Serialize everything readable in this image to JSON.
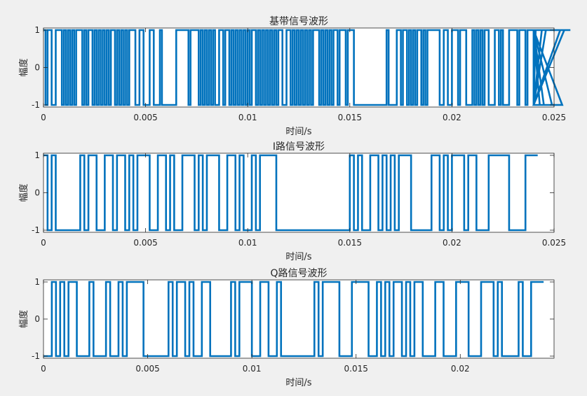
{
  "figure": {
    "background": "#f0f0f0",
    "axes_background": "#ffffff",
    "line_color": "#0072bd"
  },
  "chart_data": [
    {
      "type": "line",
      "title": "基带信号波形",
      "xlabel": "时间/s",
      "ylabel": "幅度",
      "xlim": [
        0,
        0.025
      ],
      "ylim": [
        -1,
        1
      ],
      "xticks": [
        "0",
        "0.005",
        "0.01",
        "0.015",
        "0.02",
        "0.025"
      ],
      "yticks": [
        "-1",
        "0",
        "1"
      ],
      "grid": false,
      "series": [
        {
          "style": "step",
          "bit_duration": 0.0001,
          "x_start": 0,
          "x_end": 0.024,
          "levels": [
            1,
            -1,
            1,
            1,
            -1,
            -1,
            1,
            1,
            1,
            -1,
            1,
            -1,
            1,
            -1,
            1,
            -1,
            1,
            1,
            1,
            -1,
            1,
            -1,
            1,
            1,
            -1,
            1,
            -1,
            1,
            -1,
            1,
            -1,
            1,
            -1,
            1,
            1,
            -1,
            1,
            -1,
            1,
            -1,
            1,
            -1,
            1,
            1,
            1,
            -1,
            -1,
            1,
            1,
            -1,
            -1,
            -1,
            1,
            1,
            -1,
            -1,
            -1,
            1,
            -1,
            -1,
            -1,
            -1,
            -1,
            -1,
            -1,
            1,
            1,
            1,
            1,
            1,
            1,
            -1,
            1,
            1,
            1,
            1,
            -1,
            1,
            -1,
            1,
            -1,
            1,
            -1,
            1,
            -1,
            -1,
            1,
            1,
            -1,
            1,
            1,
            -1,
            1,
            -1,
            1,
            -1,
            1,
            -1,
            1,
            -1,
            1,
            -1,
            1,
            1,
            -1,
            1,
            -1,
            1,
            -1,
            1,
            -1,
            1,
            -1,
            1,
            -1,
            1,
            1,
            -1,
            -1,
            1,
            1,
            -1,
            1,
            -1,
            1,
            -1,
            1,
            -1,
            1,
            -1,
            1,
            -1,
            1,
            1,
            1,
            -1,
            1,
            -1,
            1,
            -1,
            1,
            -1,
            1,
            1,
            -1,
            1,
            1,
            1,
            -1,
            1,
            1,
            1,
            -1,
            -1,
            -1,
            -1,
            -1,
            -1,
            -1,
            -1,
            -1,
            -1,
            -1,
            -1,
            -1,
            -1,
            -1,
            -1,
            1,
            -1,
            -1,
            -1,
            -1,
            1,
            1,
            -1,
            1,
            1,
            -1,
            1,
            -1,
            1,
            -1,
            1,
            1,
            -1,
            1,
            -1,
            1,
            1,
            1,
            1,
            1,
            1,
            -1,
            -1,
            1,
            1,
            -1,
            -1,
            1,
            1,
            1,
            -1,
            1,
            1,
            1,
            -1,
            -1,
            -1,
            1,
            -1,
            1,
            -1,
            1,
            -1,
            1,
            1,
            -1,
            -1,
            -1,
            1,
            1,
            -1,
            1,
            -1,
            -1,
            -1,
            1,
            1,
            1,
            1,
            -1,
            1,
            1,
            1,
            -1,
            1,
            1,
            1,
            -1,
            1,
            1,
            -1,
            1,
            -1,
            1,
            1,
            1,
            -1,
            -1,
            -1,
            -1,
            1,
            -1,
            1,
            1,
            1,
            1
          ]
        }
      ]
    },
    {
      "type": "line",
      "title": "I路信号波形",
      "xlabel": "时间/s",
      "ylabel": "幅度",
      "xlim": [
        0,
        0.025
      ],
      "ylim": [
        -1,
        1
      ],
      "xticks": [
        "0",
        "0.005",
        "0.01",
        "0.015",
        "0.02",
        "0.025"
      ],
      "yticks": [
        "-1",
        "0",
        "1"
      ],
      "grid": false,
      "series": [
        {
          "style": "step",
          "bit_duration": 0.0002,
          "x_start": 0,
          "x_end": 0.024,
          "levels": [
            1,
            -1,
            1,
            -1,
            -1,
            -1,
            -1,
            -1,
            -1,
            1,
            -1,
            1,
            1,
            -1,
            -1,
            1,
            1,
            -1,
            1,
            1,
            -1,
            1,
            -1,
            1,
            1,
            1,
            -1,
            -1,
            1,
            1,
            -1,
            1,
            -1,
            -1,
            1,
            1,
            1,
            -1,
            1,
            -1,
            1,
            1,
            1,
            -1,
            -1,
            1,
            1,
            -1,
            1,
            -1,
            -1,
            1,
            -1,
            1,
            1,
            1,
            1,
            -1,
            -1,
            -1,
            -1,
            -1,
            -1,
            -1,
            -1,
            -1,
            -1,
            -1,
            -1,
            -1,
            -1,
            -1,
            -1,
            -1,
            -1,
            1,
            -1,
            1,
            -1,
            -1,
            1,
            1,
            -1,
            1,
            -1,
            1,
            -1,
            1,
            1,
            1,
            -1,
            -1,
            -1,
            -1,
            -1,
            1,
            1,
            -1,
            1,
            -1,
            1,
            1,
            1,
            -1,
            1,
            1,
            -1,
            -1,
            -1,
            1,
            1,
            1,
            1,
            1,
            -1,
            -1,
            -1,
            -1,
            1,
            1,
            1,
            1
          ]
        }
      ]
    },
    {
      "type": "line",
      "title": "Q路信号波形",
      "xlabel": "时间/s",
      "ylabel": "幅度",
      "xlim": [
        0,
        0.0245
      ],
      "ylim": [
        -1,
        1
      ],
      "xticks": [
        "0",
        "0.005",
        "0.01",
        "0.015",
        "0.02"
      ],
      "yticks": [
        "-1",
        "0",
        "1"
      ],
      "grid": false,
      "series": [
        {
          "style": "step",
          "bit_duration": 0.0002,
          "x_start": 0,
          "x_end": 0.0245,
          "levels": [
            -1,
            -1,
            1,
            -1,
            1,
            -1,
            1,
            1,
            -1,
            -1,
            -1,
            1,
            -1,
            -1,
            -1,
            1,
            -1,
            -1,
            1,
            -1,
            1,
            1,
            1,
            1,
            -1,
            -1,
            -1,
            -1,
            -1,
            -1,
            1,
            -1,
            1,
            1,
            -1,
            1,
            -1,
            -1,
            1,
            1,
            -1,
            -1,
            -1,
            -1,
            -1,
            1,
            -1,
            1,
            1,
            1,
            -1,
            -1,
            1,
            1,
            -1,
            -1,
            1,
            -1,
            -1,
            -1,
            -1,
            -1,
            -1,
            -1,
            -1,
            1,
            -1,
            1,
            1,
            1,
            1,
            -1,
            -1,
            -1,
            1,
            1,
            1,
            1,
            -1,
            -1,
            1,
            -1,
            1,
            -1,
            1,
            1,
            -1,
            1,
            -1,
            1,
            1,
            -1,
            -1,
            -1,
            1,
            1,
            -1,
            -1,
            -1,
            1,
            1,
            1,
            -1,
            -1,
            -1,
            1,
            1,
            1,
            -1,
            1,
            -1,
            -1,
            -1,
            -1,
            1,
            -1,
            -1,
            1,
            1,
            1
          ]
        }
      ]
    }
  ]
}
